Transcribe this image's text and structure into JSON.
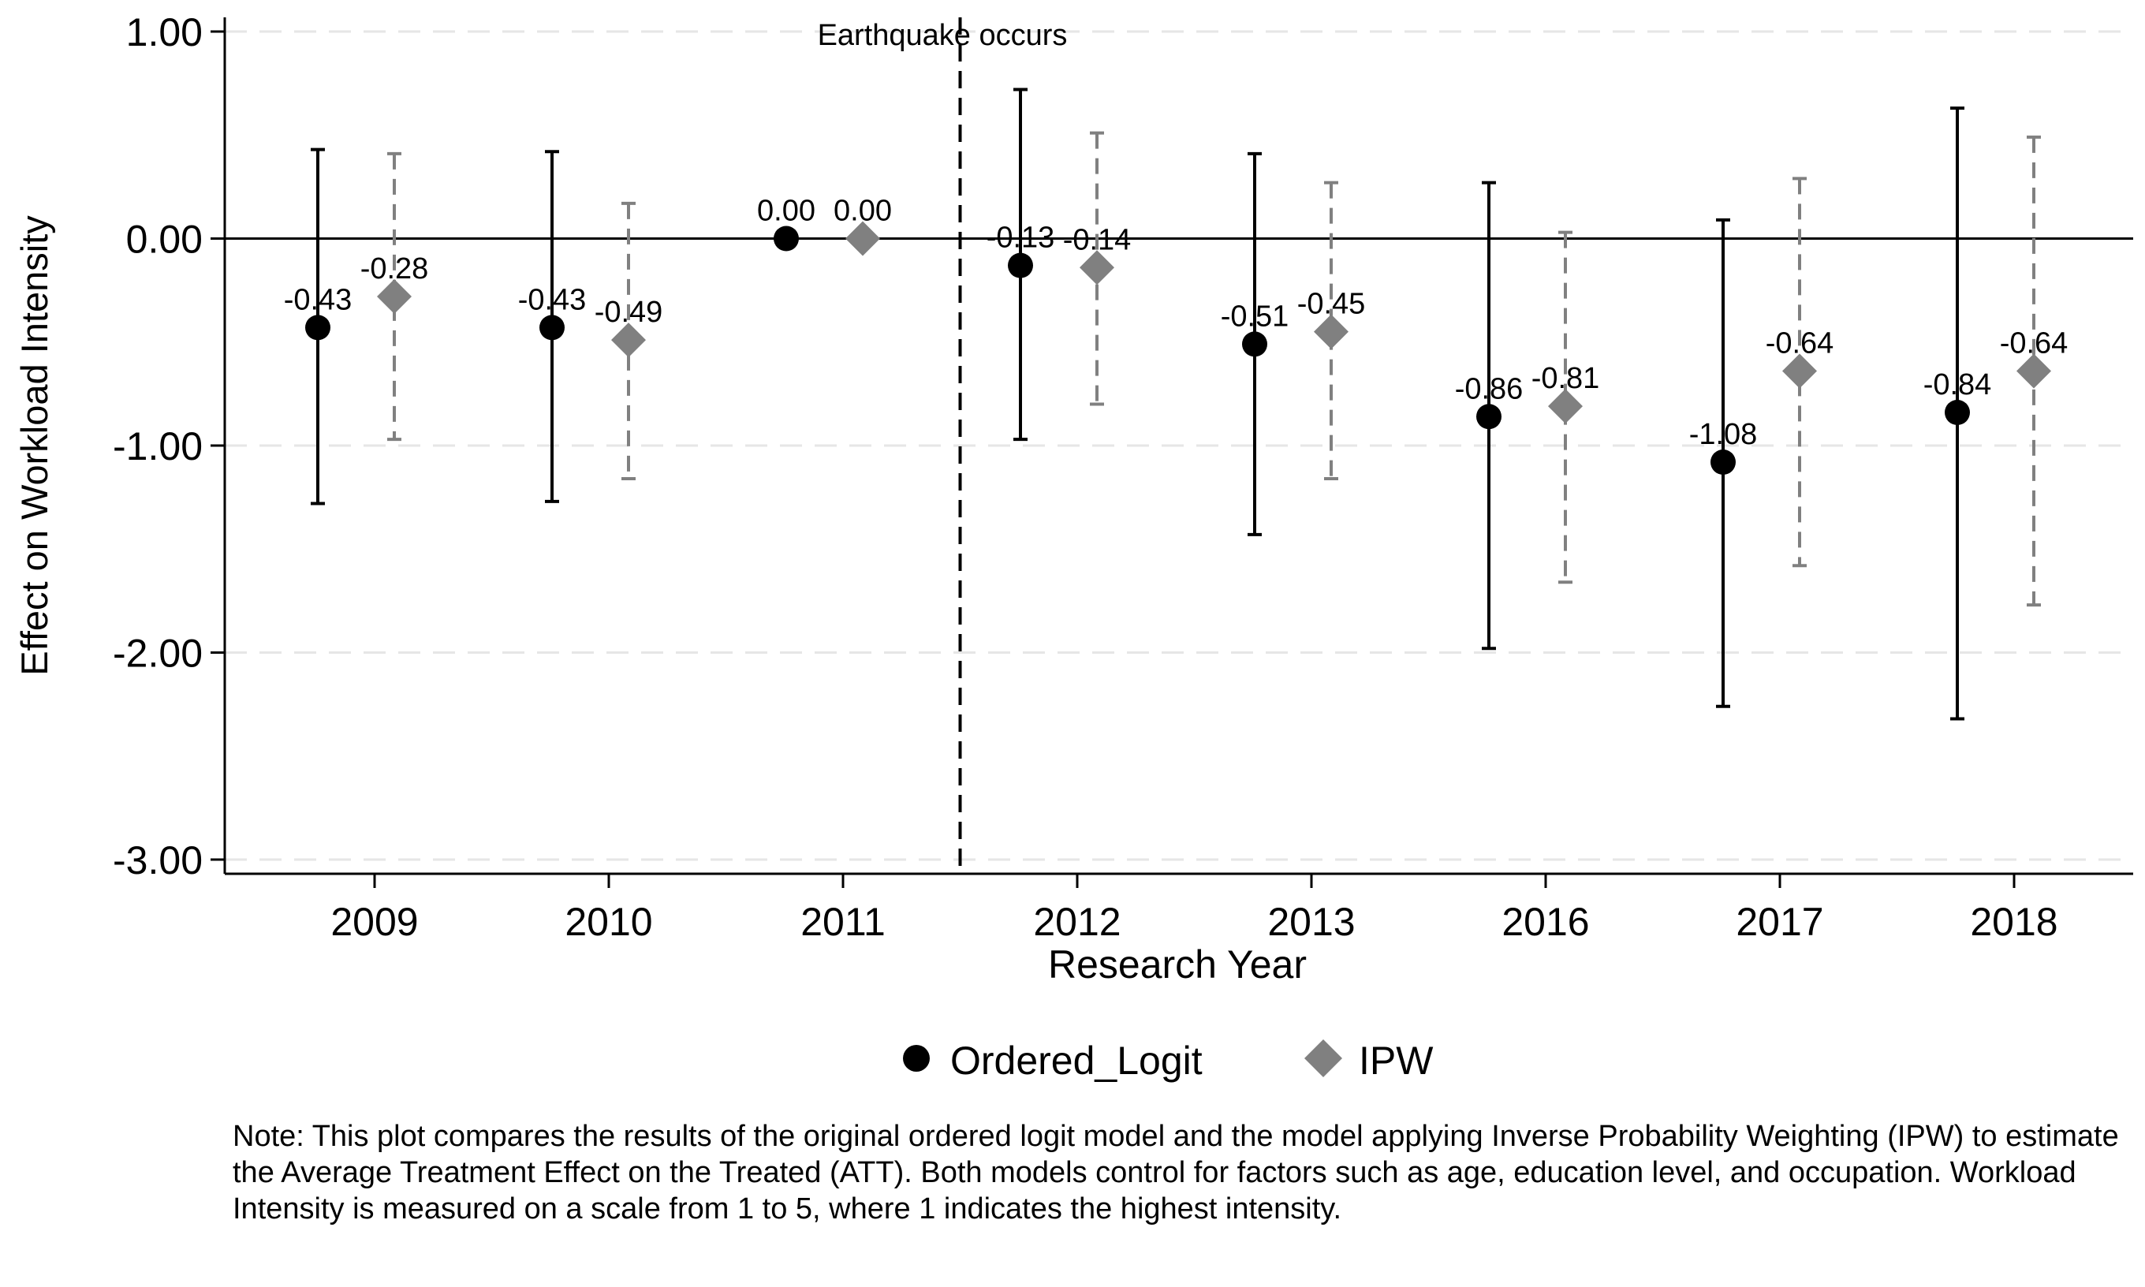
{
  "chart_data": {
    "type": "scatter",
    "subtype": "coefficient plot with confidence intervals",
    "title": "",
    "xlabel": "Research Year",
    "ylabel": "Effect on Workload Intensity",
    "categories": [
      "2009",
      "2010",
      "2011",
      "2012",
      "2013",
      "2016",
      "2017",
      "2018"
    ],
    "ylim": [
      -3.0,
      1.0
    ],
    "yticks": [
      1.0,
      0.0,
      -1.0,
      -2.0,
      -3.0
    ],
    "ytick_labels": [
      "1.00",
      "0.00",
      "-1.00",
      "-2.00",
      "-3.00"
    ],
    "grid": "horizontal dashed",
    "reference_line": {
      "axis": "y",
      "value": 0
    },
    "event_line": {
      "between": [
        "2011",
        "2012"
      ],
      "label": "Earthquake occurs"
    },
    "series": [
      {
        "name": "Ordered_Logit",
        "marker": "circle",
        "color": "#000000",
        "ci_style": "solid",
        "values": [
          -0.43,
          -0.43,
          0.0,
          -0.13,
          -0.51,
          -0.86,
          -1.08,
          -0.84
        ],
        "value_labels": [
          "-0.43",
          "-0.43",
          "0.00",
          "-0.13",
          "-0.51",
          "-0.86",
          "-1.08",
          "-0.84"
        ],
        "ci_low": [
          -1.28,
          -1.27,
          0.0,
          -0.97,
          -1.43,
          -1.98,
          -2.26,
          -2.32
        ],
        "ci_high": [
          0.43,
          0.42,
          0.0,
          0.72,
          0.41,
          0.27,
          0.09,
          0.63
        ]
      },
      {
        "name": "IPW",
        "marker": "diamond",
        "color": "#808080",
        "ci_style": "dashed",
        "values": [
          -0.28,
          -0.49,
          0.0,
          -0.14,
          -0.45,
          -0.81,
          -0.64,
          -0.64
        ],
        "value_labels": [
          "-0.28",
          "-0.49",
          "0.00",
          "-0.14",
          "-0.45",
          "-0.81",
          "-0.64",
          "-0.64"
        ],
        "ci_low": [
          -0.97,
          -1.16,
          0.0,
          -0.8,
          -1.16,
          -1.66,
          -1.58,
          -1.77
        ],
        "ci_high": [
          0.41,
          0.17,
          0.0,
          0.51,
          0.27,
          0.03,
          0.29,
          0.49
        ]
      }
    ],
    "legend": {
      "position": "bottom",
      "entries": [
        "Ordered_Logit",
        "IPW"
      ]
    }
  },
  "note": "Note: This plot compares the results of the original ordered logit model and the model applying Inverse Probability Weighting (IPW) to estimate the Average Treatment Effect on the Treated (ATT). Both models control for factors such as age, education level, and occupation. Workload Intensity is measured on a scale from 1 to 5, where 1 indicates the highest intensity."
}
